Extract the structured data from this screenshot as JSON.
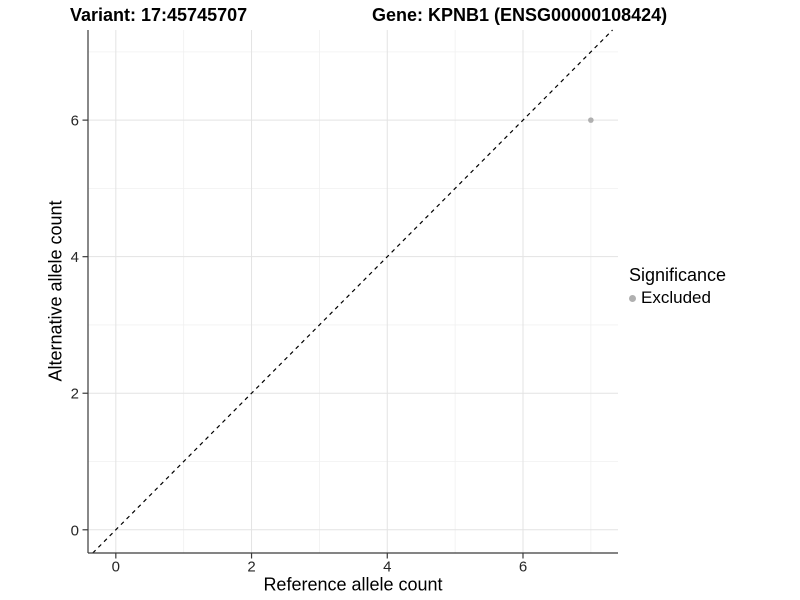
{
  "titles": {
    "left": "Variant: 17:45745707",
    "right": "Gene: KPNB1 (ENSG00000108424)"
  },
  "chart_data": {
    "type": "scatter",
    "xlabel": "Reference allele count",
    "ylabel": "Alternative allele count",
    "x_ticks": [
      0,
      2,
      4,
      6
    ],
    "y_ticks": [
      0,
      2,
      4,
      6
    ],
    "x_minor_gridlines": [
      1,
      3,
      5,
      7
    ],
    "y_minor_gridlines": [
      1,
      3,
      5,
      7
    ],
    "xlim": [
      -0.41,
      7.4
    ],
    "ylim": [
      -0.34,
      7.32
    ],
    "grid": true,
    "identity_line": {
      "show": true,
      "style": "dashed",
      "equation": "y = x"
    },
    "series": [
      {
        "name": "Excluded",
        "points": [
          {
            "x": 7,
            "y": 6
          }
        ]
      }
    ],
    "legend_position": "right"
  },
  "legend": {
    "title": "Significance",
    "items": [
      {
        "label": "Excluded",
        "color": "#b0b0b0"
      }
    ]
  },
  "colors": {
    "point": "#b0b0b0",
    "grid_major": "#e3e3e3",
    "grid_minor": "#f0f0f0",
    "axis_line": "#3a3a3a",
    "identity_line": "#000000",
    "text": "#000000"
  }
}
